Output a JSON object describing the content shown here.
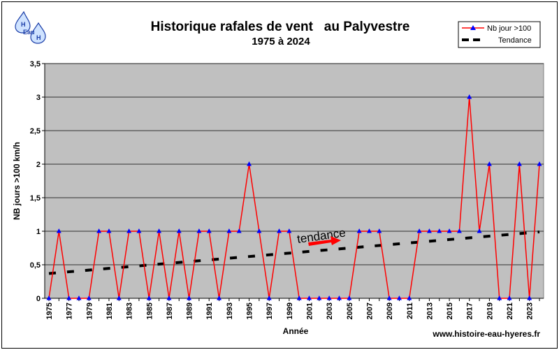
{
  "logo": {
    "text_top": "H",
    "text_mid": "Eau",
    "text_bot": "H"
  },
  "chart_data": {
    "type": "line",
    "title": "Historique rafales de vent   au Palyvestre",
    "subtitle": "1975 à 2024",
    "xlabel": "Année",
    "ylabel": "NB jours >100 km/h",
    "ylim": [
      0,
      3.5
    ],
    "yticks": [
      "0",
      "0,5",
      "1",
      "1,5",
      "2",
      "2,5",
      "3",
      "3,5"
    ],
    "xtick_labels": [
      "1975",
      "1977",
      "1979",
      "1981",
      "1983",
      "1985",
      "1987",
      "1989",
      "1991",
      "1993",
      "1995",
      "1997",
      "1999",
      "2001",
      "2003",
      "2005",
      "2007",
      "2009",
      "2011",
      "2013",
      "2015",
      "2017",
      "2019",
      "2021",
      "2023"
    ],
    "grid": "horizontal",
    "legend_position": "top-right",
    "x": [
      1975,
      1976,
      1977,
      1978,
      1979,
      1980,
      1981,
      1982,
      1983,
      1984,
      1985,
      1986,
      1987,
      1988,
      1989,
      1990,
      1991,
      1992,
      1993,
      1994,
      1995,
      1996,
      1997,
      1998,
      1999,
      2000,
      2001,
      2002,
      2003,
      2004,
      2005,
      2006,
      2007,
      2008,
      2009,
      2010,
      2011,
      2012,
      2013,
      2014,
      2015,
      2016,
      2017,
      2018,
      2019,
      2020,
      2021,
      2022,
      2023,
      2024
    ],
    "series": [
      {
        "name": "Nb jour >100",
        "color": "#ff0000",
        "marker_color": "#0000ff",
        "values": [
          0,
          1,
          0,
          0,
          0,
          1,
          1,
          0,
          1,
          1,
          0,
          1,
          0,
          1,
          0,
          1,
          1,
          0,
          1,
          1,
          2,
          1,
          0,
          1,
          1,
          0,
          0,
          0,
          0,
          0,
          0,
          1,
          1,
          1,
          0,
          0,
          0,
          1,
          1,
          1,
          1,
          1,
          3,
          1,
          2,
          0,
          0,
          2,
          0,
          2
        ]
      },
      {
        "name": "Tendance",
        "color": "#000000",
        "style": "dashed",
        "start": [
          1975,
          0.37
        ],
        "end": [
          2024,
          0.99
        ]
      }
    ],
    "annotation": {
      "text": "tendance",
      "arrow_color": "#ff0000"
    }
  },
  "footer": {
    "website": "www.histoire-eau-hyeres.fr"
  }
}
